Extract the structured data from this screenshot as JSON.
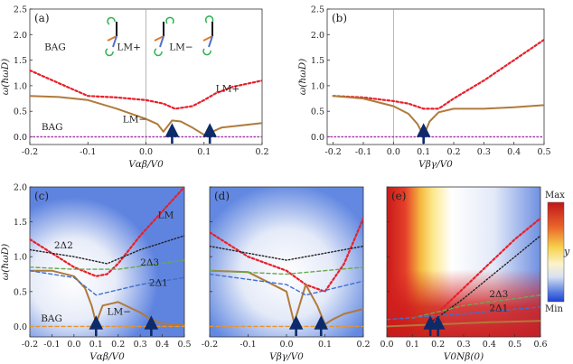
{
  "chart_data": [
    {
      "type": "line",
      "panel_label": "(a)",
      "xlabel": "Vαβ/V0",
      "ylabel": "ω(ħωD)",
      "xlim": [
        -0.2,
        0.2
      ],
      "ylim": [
        -0.15,
        2.5
      ],
      "xticks": [
        "-0.2",
        "-0.1",
        "0.0",
        "0.1",
        "0.2"
      ],
      "yticks": [
        "0.0",
        "0.5",
        "1.0",
        "1.5",
        "2.0",
        "2.5"
      ],
      "series": [
        {
          "name": "LM+",
          "style": "red-dotted",
          "x": [
            -0.2,
            -0.15,
            -0.1,
            -0.05,
            0.0,
            0.03,
            0.05,
            0.08,
            0.1,
            0.12,
            0.15,
            0.2
          ],
          "y": [
            1.3,
            1.05,
            0.8,
            0.77,
            0.72,
            0.65,
            0.55,
            0.6,
            0.72,
            0.85,
            0.98,
            1.1
          ]
        },
        {
          "name": "LM−",
          "style": "brown-solid",
          "x": [
            -0.2,
            -0.15,
            -0.1,
            -0.05,
            0.0,
            0.02,
            0.03,
            0.045,
            0.06,
            0.08,
            0.1,
            0.11,
            0.13,
            0.16,
            0.2
          ],
          "y": [
            0.8,
            0.78,
            0.72,
            0.55,
            0.35,
            0.25,
            0.1,
            0.32,
            0.3,
            0.18,
            0.04,
            0.08,
            0.18,
            0.22,
            0.27
          ]
        },
        {
          "name": "BAG",
          "style": "purple-dotted",
          "x": [
            -0.2,
            0.2
          ],
          "y": [
            0.0,
            0.0
          ]
        }
      ],
      "annotations": [
        "BAG",
        "LM+",
        "LM−",
        "BAG",
        "LM+",
        "LM−"
      ],
      "arrows_at_x": [
        0.045,
        0.11
      ]
    },
    {
      "type": "line",
      "panel_label": "(b)",
      "xlabel": "Vβγ/V0",
      "ylabel": "ω(ħωD)",
      "xlim": [
        -0.22,
        0.5
      ],
      "ylim": [
        -0.15,
        2.5
      ],
      "xticks": [
        "-0.2",
        "-0.1",
        "0.0",
        "0.1",
        "0.2",
        "0.3",
        "0.4",
        "0.5"
      ],
      "yticks": [
        "0.0",
        "0.5",
        "1.0",
        "1.5",
        "2.0",
        "2.5"
      ],
      "series": [
        {
          "name": "upper",
          "style": "red-dotted",
          "x": [
            -0.2,
            -0.1,
            0.0,
            0.05,
            0.1,
            0.15,
            0.2,
            0.3,
            0.4,
            0.5
          ],
          "y": [
            0.8,
            0.77,
            0.7,
            0.65,
            0.55,
            0.55,
            0.75,
            1.1,
            1.5,
            1.9
          ]
        },
        {
          "name": "lower",
          "style": "brown-solid",
          "x": [
            -0.2,
            -0.1,
            0.0,
            0.05,
            0.08,
            0.1,
            0.12,
            0.15,
            0.2,
            0.3,
            0.4,
            0.5
          ],
          "y": [
            0.8,
            0.75,
            0.6,
            0.45,
            0.25,
            0.02,
            0.3,
            0.48,
            0.55,
            0.55,
            0.58,
            0.62
          ]
        },
        {
          "name": "BAG",
          "style": "purple-dotted",
          "x": [
            -0.22,
            0.5
          ],
          "y": [
            0.0,
            0.0
          ]
        }
      ],
      "arrows_at_x": [
        0.1
      ]
    },
    {
      "type": "heatmap",
      "panel_label": "(c)",
      "xlabel": "Vαβ/V0",
      "ylabel": "ω(ħωD)",
      "xlim": [
        -0.2,
        0.5
      ],
      "ylim": [
        -0.15,
        2.0
      ],
      "xticks": [
        "-0.2",
        "-0.1",
        "0.0",
        "0.1",
        "0.2",
        "0.3",
        "0.4",
        "0.5"
      ],
      "yticks": [
        "0.0",
        "0.5",
        "1.0",
        "1.5",
        "2.0"
      ],
      "series": [
        {
          "name": "LM",
          "style": "red-dotted",
          "x": [
            -0.2,
            -0.1,
            0.0,
            0.1,
            0.15,
            0.2,
            0.3,
            0.4,
            0.5
          ],
          "y": [
            1.25,
            1.05,
            0.85,
            0.72,
            0.75,
            0.9,
            1.3,
            1.65,
            2.0
          ]
        },
        {
          "name": "LM−",
          "style": "brown-solid",
          "x": [
            -0.2,
            -0.1,
            0.0,
            0.05,
            0.08,
            0.1,
            0.13,
            0.2,
            0.3,
            0.35,
            0.4,
            0.5
          ],
          "y": [
            0.8,
            0.8,
            0.72,
            0.55,
            0.3,
            0.05,
            0.3,
            0.35,
            0.2,
            0.1,
            0.04,
            0.02
          ]
        },
        {
          "name": "2Δ2",
          "style": "black-dotted",
          "x": [
            -0.2,
            0.0,
            0.15,
            0.3,
            0.5
          ],
          "y": [
            1.1,
            1.0,
            0.9,
            1.1,
            1.3
          ]
        },
        {
          "name": "2Δ3",
          "style": "green-dashed",
          "x": [
            -0.2,
            0.0,
            0.2,
            0.5
          ],
          "y": [
            0.85,
            0.82,
            0.82,
            0.95
          ]
        },
        {
          "name": "2Δ1",
          "style": "blue-dashed",
          "x": [
            -0.2,
            0.0,
            0.1,
            0.3,
            0.5
          ],
          "y": [
            0.8,
            0.7,
            0.45,
            0.6,
            0.7
          ]
        },
        {
          "name": "BAG",
          "style": "orange-dashed",
          "x": [
            -0.2,
            0.5
          ],
          "y": [
            0.0,
            0.0
          ]
        }
      ],
      "annotations": [
        "LM",
        "2Δ2",
        "2Δ3",
        "2Δ1",
        "LM−",
        "BAG"
      ],
      "arrows_at_x": [
        0.1,
        0.35
      ]
    },
    {
      "type": "heatmap",
      "panel_label": "(d)",
      "xlabel": "Vβγ/V0",
      "xlim": [
        -0.2,
        0.2
      ],
      "ylim": [
        -0.15,
        2.0
      ],
      "xticks": [
        "-0.2",
        "-0.1",
        "0.0",
        "0.1",
        "0.2"
      ],
      "series": [
        {
          "name": "upper",
          "style": "red-dotted",
          "x": [
            -0.2,
            -0.1,
            0.0,
            0.05,
            0.1,
            0.15,
            0.2
          ],
          "y": [
            1.35,
            1.0,
            0.8,
            0.6,
            0.5,
            0.9,
            1.55
          ]
        },
        {
          "name": "lower",
          "style": "brown-solid",
          "x": [
            -0.2,
            -0.1,
            0.0,
            0.02,
            0.05,
            0.08,
            0.1,
            0.12,
            0.15,
            0.2
          ],
          "y": [
            0.8,
            0.78,
            0.5,
            0.05,
            0.6,
            0.3,
            0.03,
            0.1,
            0.18,
            0.25
          ]
        },
        {
          "name": "2Δ2",
          "style": "black-dotted",
          "x": [
            -0.2,
            0.0,
            0.2
          ],
          "y": [
            1.15,
            0.95,
            1.15
          ]
        },
        {
          "name": "2Δ3",
          "style": "green-dashed",
          "x": [
            -0.2,
            0.0,
            0.2
          ],
          "y": [
            0.8,
            0.75,
            0.85
          ]
        },
        {
          "name": "2Δ1",
          "style": "blue-dashed",
          "x": [
            -0.2,
            0.0,
            0.05,
            0.2
          ],
          "y": [
            0.75,
            0.6,
            0.45,
            0.65
          ]
        },
        {
          "name": "BAG",
          "style": "orange-dashed",
          "x": [
            -0.2,
            0.2
          ],
          "y": [
            0.0,
            0.0
          ]
        }
      ],
      "arrows_at_x": [
        0.025,
        0.09
      ]
    },
    {
      "type": "heatmap",
      "panel_label": "(e)",
      "xlabel": "V0Nβ(0)",
      "xlim": [
        0.0,
        0.6
      ],
      "ylim": [
        -0.15,
        2.0
      ],
      "xticks": [
        "0.0",
        "0.1",
        "0.2",
        "0.3",
        "0.4",
        "0.5",
        "0.6"
      ],
      "series": [
        {
          "name": "upper",
          "style": "red-dotted",
          "x": [
            0.15,
            0.2,
            0.3,
            0.4,
            0.5,
            0.6
          ],
          "y": [
            0.0,
            0.2,
            0.55,
            0.9,
            1.25,
            1.55
          ]
        },
        {
          "name": "2Δ2",
          "style": "black-dotted",
          "x": [
            0.15,
            0.3,
            0.45,
            0.6
          ],
          "y": [
            0.0,
            0.4,
            0.85,
            1.3
          ]
        },
        {
          "name": "2Δ3",
          "style": "green-dashed",
          "x": [
            0.1,
            0.3,
            0.6
          ],
          "y": [
            0.12,
            0.3,
            0.45
          ]
        },
        {
          "name": "2Δ1",
          "style": "blue-dashed",
          "x": [
            0.0,
            0.3,
            0.6
          ],
          "y": [
            0.1,
            0.18,
            0.28
          ]
        },
        {
          "name": "lower",
          "style": "brown-solid",
          "x": [
            0.0,
            0.2,
            0.4,
            0.6
          ],
          "y": [
            0.0,
            0.03,
            0.06,
            0.08
          ]
        }
      ],
      "annotations": [
        "2Δ3",
        "2Δ1"
      ],
      "arrows_at_x": [
        0.17,
        0.2
      ]
    }
  ],
  "colorbar": {
    "max_label": "Max",
    "min_label": "Min",
    "var_label": "y"
  }
}
